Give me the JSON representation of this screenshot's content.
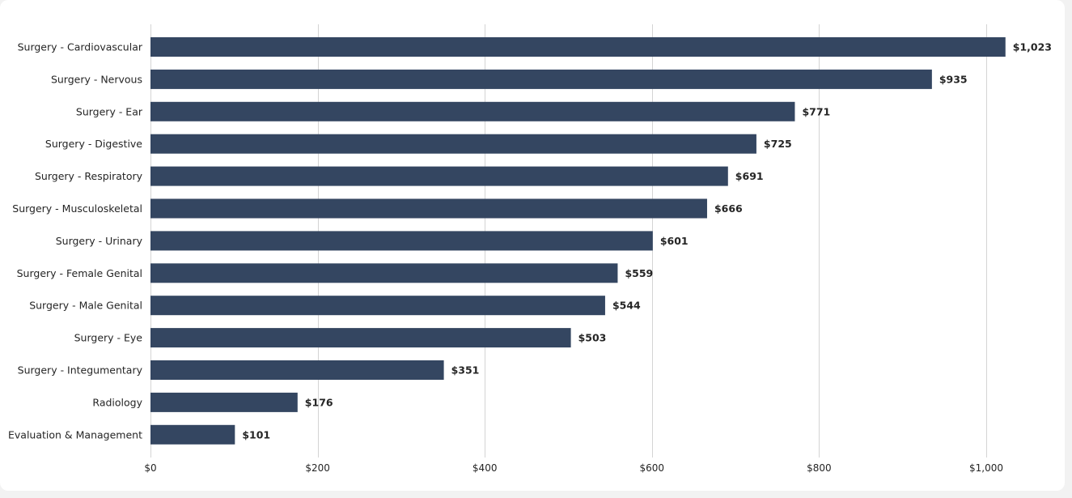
{
  "chart_data": {
    "type": "bar",
    "orientation": "horizontal",
    "categories": [
      "Surgery - Cardiovascular",
      "Surgery - Nervous",
      "Surgery - Ear",
      "Surgery - Digestive",
      "Surgery - Respiratory",
      "Surgery - Musculoskeletal",
      "Surgery - Urinary",
      "Surgery - Female Genital",
      "Surgery - Male Genital",
      "Surgery - Eye",
      "Surgery - Integumentary",
      "Radiology",
      "Evaluation & Management"
    ],
    "values": [
      1023,
      935,
      771,
      725,
      691,
      666,
      601,
      559,
      544,
      503,
      351,
      176,
      101
    ],
    "value_labels": [
      "$1,023",
      "$935",
      "$771",
      "$725",
      "$691",
      "$666",
      "$601",
      "$559",
      "$544",
      "$503",
      "$351",
      "$176",
      "$101"
    ],
    "x_ticks": [
      0,
      200,
      400,
      600,
      800,
      1000
    ],
    "x_tick_labels": [
      "$0",
      "$200",
      "$400",
      "$600",
      "$800",
      "$1,000"
    ],
    "xlim": [
      0,
      1000
    ],
    "title": "",
    "xlabel": "",
    "ylabel": "",
    "grid": "vertical",
    "legend": "none",
    "bar_color": "#344661"
  }
}
